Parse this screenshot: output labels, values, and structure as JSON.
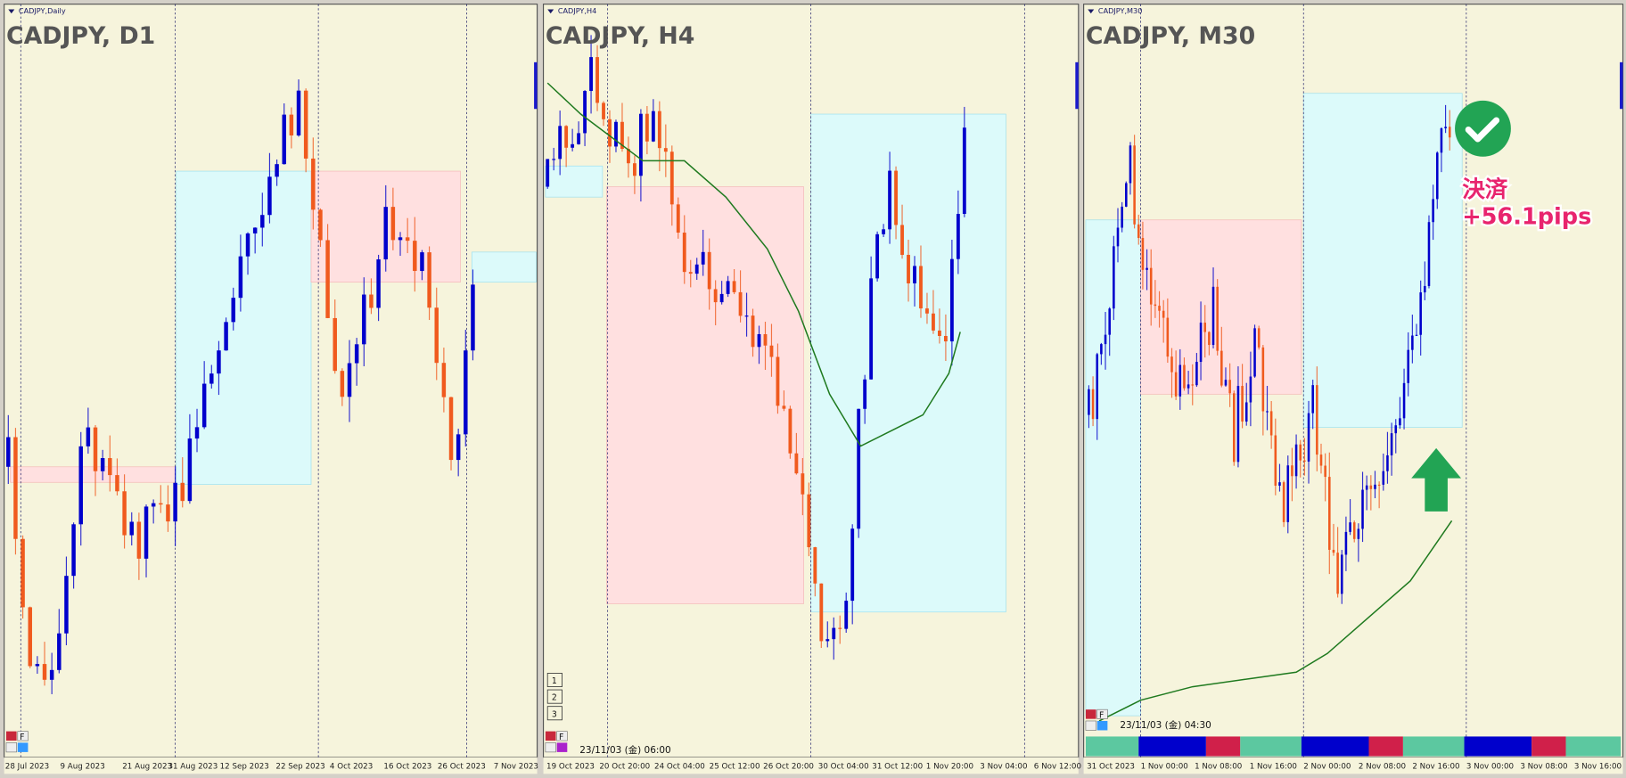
{
  "panels": [
    {
      "tab": "CADJPY,Daily",
      "title": "CADJPY, D1",
      "dates": [
        "28 Jul 2023",
        "9 Aug 2023",
        "21 Aug 2023",
        "31 Aug 2023",
        "12 Sep 2023",
        "22 Sep 2023",
        "4 Oct 2023",
        "16 Oct 2023",
        "26 Oct 2023",
        "7 Nov 2023"
      ]
    },
    {
      "tab": "CADJPY,H4",
      "title": "CADJPY, H4",
      "dates": [
        "19 Oct 2023",
        "20 Oct 20:00",
        "24 Oct 04:00",
        "25 Oct 12:00",
        "26 Oct 20:00",
        "30 Oct 04:00",
        "31 Oct 12:00",
        "1 Nov 20:00",
        "3 Nov 04:00",
        "6 Nov 12:00"
      ],
      "buttons": [
        "1",
        "2",
        "3"
      ],
      "timestamp": "23/11/03 (金) 06:00"
    },
    {
      "tab": "CADJPY,M30",
      "title": "CADJPY, M30",
      "dates": [
        "31 Oct 2023",
        "1 Nov 00:00",
        "1 Nov 08:00",
        "1 Nov 16:00",
        "2 Nov 00:00",
        "2 Nov 08:00",
        "2 Nov 16:00",
        "3 Nov 00:00",
        "3 Nov 08:00",
        "3 Nov 16:00"
      ],
      "timestamp": "23/11/03 (金) 04:30",
      "annotation": {
        "label": "決済",
        "result": "+56.1pips"
      }
    }
  ],
  "panel_button": "F"
}
